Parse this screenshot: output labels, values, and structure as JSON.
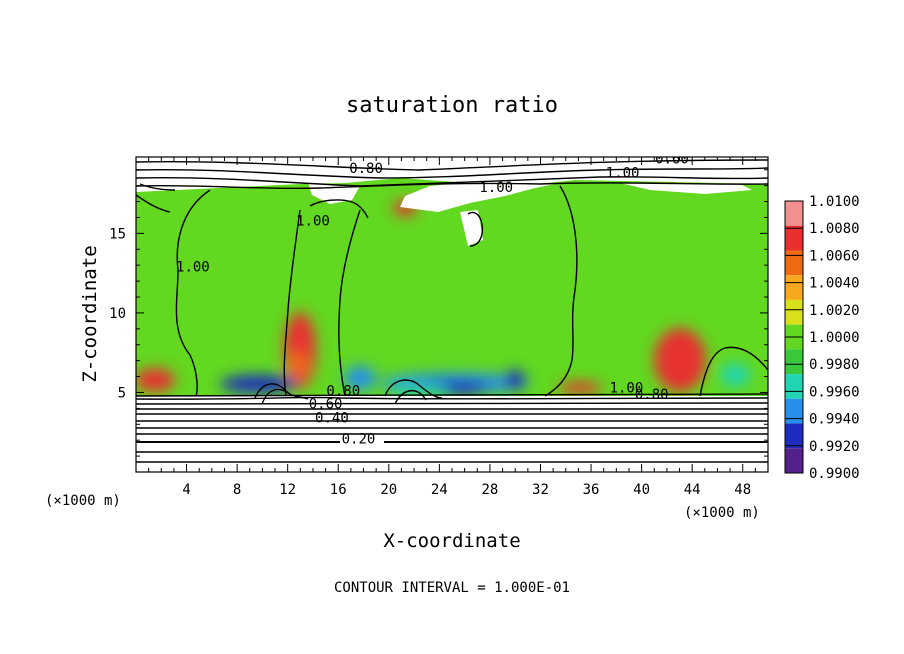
{
  "chart_data": {
    "type": "heatmap",
    "title": "saturation ratio",
    "xlabel": "X-coordinate",
    "ylabel": "Z-coordinate",
    "x_unit": "(×1000 m)",
    "xlim": [
      0,
      50
    ],
    "ylim": [
      0,
      19.8
    ],
    "xticks": [
      4,
      8,
      12,
      16,
      20,
      24,
      28,
      32,
      36,
      40,
      44,
      48
    ],
    "yticks": [
      5,
      10,
      15
    ],
    "footer": "CONTOUR INTERVAL = 1.000E-01",
    "colorbar": {
      "levels": [
        "1.0100",
        "1.0080",
        "1.0060",
        "1.0040",
        "1.0020",
        "1.0000",
        "0.9980",
        "0.9960",
        "0.9940",
        "0.9920",
        "0.9900"
      ],
      "colors": [
        "#f29090",
        "#e83030",
        "#f06a12",
        "#f7a81e",
        "#d8e01a",
        "#62d820",
        "#38c83a",
        "#22d5b2",
        "#2890ea",
        "#1f2cc0",
        "#54218c"
      ]
    },
    "contour_labels": [
      {
        "text": "0.80",
        "x": 18.2,
        "z": 18.8
      },
      {
        "text": "0.60",
        "x": 42.4,
        "z": 19.4
      },
      {
        "text": "1.00",
        "x": 38.5,
        "z": 18.5
      },
      {
        "text": "1.00",
        "x": 28.5,
        "z": 17.6
      },
      {
        "text": "1.00",
        "x": 14.0,
        "z": 15.5
      },
      {
        "text": "1.00",
        "x": 4.5,
        "z": 12.6
      },
      {
        "text": "0.80",
        "x": 16.4,
        "z": 4.8
      },
      {
        "text": "0.60",
        "x": 15.0,
        "z": 4.0
      },
      {
        "text": "0.40",
        "x": 15.5,
        "z": 3.1
      },
      {
        "text": "0.20",
        "x": 17.6,
        "z": 1.8
      },
      {
        "text": "1.00",
        "x": 38.8,
        "z": 5.0
      },
      {
        "text": "0.80",
        "x": 40.8,
        "z": 4.6
      }
    ]
  }
}
